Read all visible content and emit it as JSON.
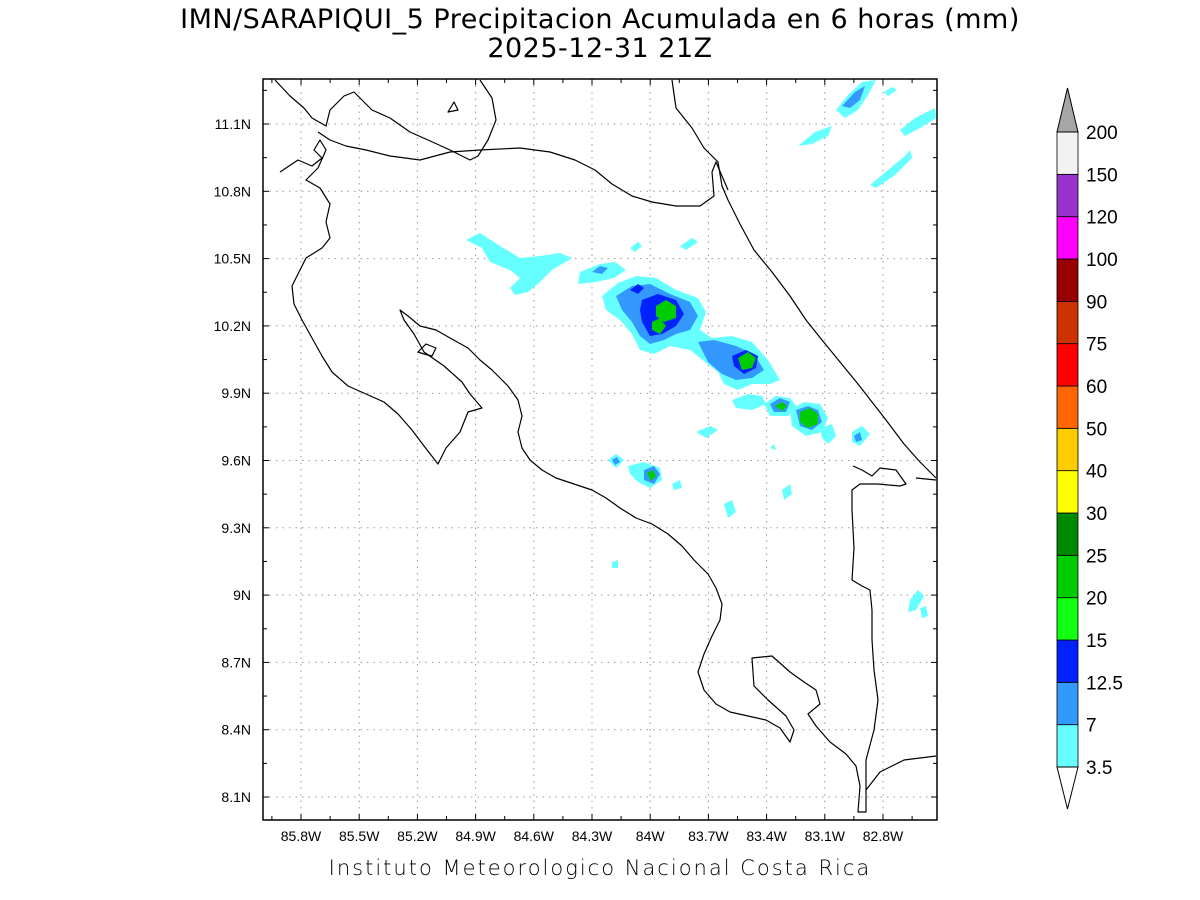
{
  "title": {
    "line1": "IMN/SARAPIQUI_5 Precipitacion Acumulada en 6 horas (mm)",
    "line2": "2025-12-31 21Z"
  },
  "footer": "Instituto Meteorologico Nacional Costa Rica",
  "axes": {
    "lon_ticks": [
      "85.8W",
      "85.5W",
      "85.2W",
      "84.9W",
      "84.6W",
      "84.3W",
      "84W",
      "83.7W",
      "83.4W",
      "83.1W",
      "82.8W"
    ],
    "lat_ticks": [
      "11.1N",
      "10.8N",
      "10.5N",
      "10.2N",
      "9.9N",
      "9.6N",
      "9.3N",
      "9N",
      "8.7N",
      "8.4N",
      "8.1N"
    ],
    "lon_range": [
      -86.15,
      -82.6
    ],
    "lat_range": [
      8.0,
      11.3
    ],
    "grid": "dotted"
  },
  "colorbar": {
    "labels": [
      "3.5",
      "7",
      "12.5",
      "15",
      "20",
      "25",
      "30",
      "40",
      "50",
      "60",
      "75",
      "90",
      "100",
      "120",
      "150",
      "200"
    ],
    "colors": [
      "#66ffff",
      "#3399ff",
      "#0022ff",
      "#11ff11",
      "#00cc00",
      "#008800",
      "#ffff00",
      "#ffcc00",
      "#ff6600",
      "#ff0000",
      "#cc3300",
      "#990000",
      "#ff00ff",
      "#9933cc",
      "#f2f2f2"
    ],
    "over_color": "#a6a6a6",
    "under_color": "#ffffff"
  }
}
